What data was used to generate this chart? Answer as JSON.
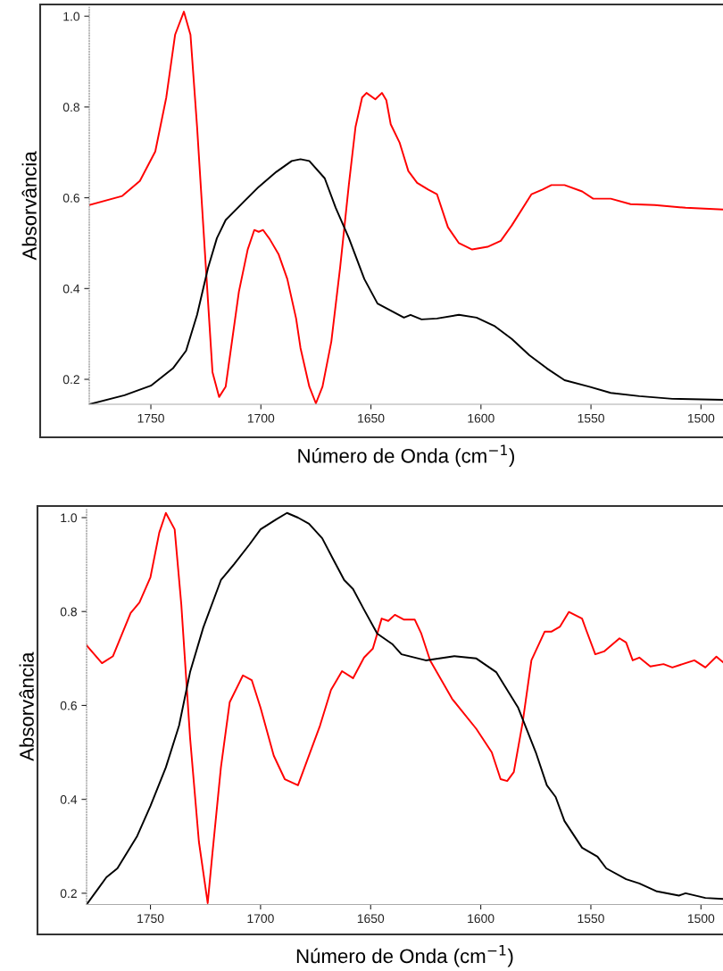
{
  "chart_data": [
    {
      "type": "line",
      "xlabel": "Número de Onda (cm$^{−1}$)",
      "ylabel": "Absorvância",
      "xlim": [
        1778,
        1490
      ],
      "ylim": [
        0.145,
        1.02
      ],
      "xticks": [
        1750,
        1700,
        1650,
        1600,
        1550,
        1500
      ],
      "yticks": [
        {
          "value": 0.2,
          "label": "0.2"
        },
        {
          "value": 0.4,
          "label": "0.4"
        },
        {
          "value": 0.6,
          "label": "0.6"
        },
        {
          "value": 0.8,
          "label": "0.8"
        },
        {
          "value": 1.0,
          "label": "1.0"
        }
      ],
      "grid": false,
      "legend": false,
      "series": [
        {
          "color": "#ff0000",
          "x": [
            1778,
            1763,
            1755,
            1748,
            1743,
            1739,
            1735,
            1732,
            1729,
            1725,
            1722,
            1719,
            1716,
            1710,
            1706,
            1703,
            1701,
            1699,
            1696,
            1692,
            1688,
            1684,
            1682,
            1678,
            1675,
            1672,
            1668,
            1664,
            1660,
            1657,
            1654,
            1652,
            1648,
            1645,
            1643,
            1641,
            1637,
            1633,
            1629,
            1624,
            1620,
            1615,
            1610,
            1604,
            1597,
            1591,
            1586,
            1577,
            1572,
            1568,
            1562,
            1554,
            1549,
            1541,
            1532,
            1521,
            1507,
            1490
          ],
          "values": [
            0.584,
            0.604,
            0.637,
            0.702,
            0.821,
            0.959,
            1.01,
            0.959,
            0.756,
            0.446,
            0.216,
            0.161,
            0.184,
            0.393,
            0.486,
            0.529,
            0.525,
            0.529,
            0.509,
            0.476,
            0.421,
            0.334,
            0.269,
            0.184,
            0.147,
            0.184,
            0.283,
            0.446,
            0.63,
            0.756,
            0.821,
            0.831,
            0.817,
            0.831,
            0.815,
            0.762,
            0.722,
            0.659,
            0.633,
            0.618,
            0.608,
            0.535,
            0.5,
            0.486,
            0.492,
            0.505,
            0.539,
            0.608,
            0.618,
            0.628,
            0.628,
            0.614,
            0.598,
            0.598,
            0.586,
            0.584,
            0.578,
            0.574
          ]
        },
        {
          "color": "#000000",
          "x": [
            1778,
            1762,
            1750,
            1740,
            1734,
            1729,
            1724,
            1720,
            1716,
            1708,
            1701,
            1693,
            1686,
            1682,
            1678,
            1671,
            1666,
            1660,
            1653,
            1647,
            1635,
            1632,
            1627,
            1620,
            1610,
            1602,
            1594,
            1586,
            1578,
            1570,
            1562,
            1551,
            1541,
            1528,
            1513,
            1490
          ],
          "values": [
            0.145,
            0.165,
            0.186,
            0.224,
            0.263,
            0.342,
            0.446,
            0.511,
            0.551,
            0.59,
            0.624,
            0.657,
            0.681,
            0.685,
            0.681,
            0.643,
            0.578,
            0.511,
            0.421,
            0.367,
            0.336,
            0.342,
            0.332,
            0.334,
            0.342,
            0.336,
            0.318,
            0.289,
            0.253,
            0.224,
            0.198,
            0.184,
            0.17,
            0.163,
            0.157,
            0.155
          ]
        }
      ]
    },
    {
      "type": "line",
      "xlabel": "Número de Onda (cm$^{−1}$)",
      "ylabel": "Absorvância",
      "xlim": [
        1779,
        1490
      ],
      "ylim": [
        0.176,
        1.019
      ],
      "xticks": [
        1750,
        1700,
        1650,
        1600,
        1550,
        1500
      ],
      "yticks": [
        {
          "value": 0.2,
          "label": "0.2"
        },
        {
          "value": 0.4,
          "label": "0.4"
        },
        {
          "value": 0.6,
          "label": "0.6"
        },
        {
          "value": 0.8,
          "label": "0.8"
        },
        {
          "value": 1.0,
          "label": "1.0"
        }
      ],
      "grid": false,
      "legend": false,
      "series": [
        {
          "color": "#ff0000",
          "x": [
            1779,
            1772,
            1767,
            1759,
            1755,
            1750,
            1746,
            1743,
            1739,
            1736,
            1732,
            1728,
            1724,
            1722,
            1718,
            1714,
            1708,
            1704,
            1700,
            1694,
            1689,
            1683,
            1679,
            1673,
            1668,
            1663,
            1658,
            1653,
            1649,
            1645,
            1642,
            1639,
            1635,
            1630,
            1627,
            1623,
            1613,
            1602,
            1595,
            1591,
            1588,
            1585,
            1581,
            1577,
            1571,
            1568,
            1564,
            1560,
            1554,
            1552,
            1548,
            1544,
            1537,
            1534,
            1531,
            1528,
            1523,
            1517,
            1513,
            1503,
            1498,
            1493,
            1490
          ],
          "values": [
            0.728,
            0.69,
            0.705,
            0.797,
            0.819,
            0.873,
            0.968,
            1.01,
            0.975,
            0.816,
            0.531,
            0.31,
            0.179,
            0.278,
            0.468,
            0.607,
            0.664,
            0.654,
            0.595,
            0.493,
            0.443,
            0.43,
            0.481,
            0.557,
            0.633,
            0.673,
            0.658,
            0.702,
            0.721,
            0.785,
            0.78,
            0.793,
            0.783,
            0.783,
            0.753,
            0.696,
            0.614,
            0.55,
            0.5,
            0.443,
            0.439,
            0.458,
            0.563,
            0.696,
            0.757,
            0.757,
            0.768,
            0.799,
            0.785,
            0.759,
            0.709,
            0.715,
            0.743,
            0.734,
            0.696,
            0.702,
            0.683,
            0.688,
            0.681,
            0.696,
            0.681,
            0.704,
            0.692
          ]
        },
        {
          "color": "#000000",
          "x": [
            1779,
            1774,
            1770,
            1765,
            1756,
            1750,
            1743,
            1737,
            1732,
            1726,
            1718,
            1712,
            1705,
            1700,
            1693,
            1688,
            1683,
            1678,
            1672,
            1667,
            1662,
            1658,
            1653,
            1647,
            1640,
            1636,
            1625,
            1612,
            1602,
            1593,
            1583,
            1575,
            1570,
            1566,
            1562,
            1554,
            1547,
            1543,
            1534,
            1528,
            1520,
            1510,
            1507,
            1498,
            1490
          ],
          "values": [
            0.176,
            0.208,
            0.234,
            0.253,
            0.322,
            0.386,
            0.468,
            0.557,
            0.671,
            0.766,
            0.867,
            0.901,
            0.943,
            0.975,
            0.996,
            1.01,
            1.0,
            0.987,
            0.956,
            0.911,
            0.867,
            0.848,
            0.804,
            0.753,
            0.73,
            0.709,
            0.696,
            0.705,
            0.7,
            0.671,
            0.595,
            0.5,
            0.43,
            0.405,
            0.354,
            0.297,
            0.278,
            0.253,
            0.23,
            0.221,
            0.204,
            0.195,
            0.2,
            0.19,
            0.188
          ]
        }
      ]
    }
  ]
}
